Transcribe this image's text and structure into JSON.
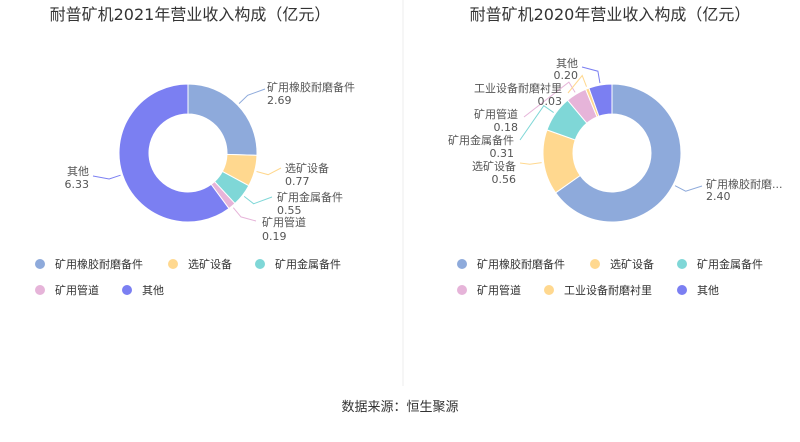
{
  "source_note": "数据来源：恒生聚源",
  "chart_data": [
    {
      "type": "pie",
      "title": "耐普矿机2021年营业收入构成（亿元）",
      "categories": [
        "矿用橡胶耐磨备件",
        "选矿设备",
        "矿用金属备件",
        "矿用管道",
        "其他"
      ],
      "values": [
        2.69,
        0.77,
        0.55,
        0.19,
        6.33
      ],
      "value_labels": [
        "2.69",
        "0.77",
        "0.55",
        "0.19",
        "6.33"
      ],
      "colors": [
        "#8eaadb",
        "#ffd88f",
        "#7fd7d7",
        "#e6b4d9",
        "#7b7ff2"
      ],
      "donut": true
    },
    {
      "type": "pie",
      "title": "耐普矿机2020年营业收入构成（亿元）",
      "categories": [
        "矿用橡胶耐磨备件",
        "选矿设备",
        "矿用金属备件",
        "矿用管道",
        "工业设备耐磨衬里",
        "其他"
      ],
      "display_labels": [
        "矿用橡胶耐磨...",
        "选矿设备",
        "矿用金属备件",
        "矿用管道",
        "工业设备耐磨衬里",
        "其他"
      ],
      "values": [
        2.4,
        0.56,
        0.31,
        0.18,
        0.03,
        0.2
      ],
      "value_labels": [
        "2.40",
        "0.56",
        "0.31",
        "0.18",
        "0.03",
        "0.20"
      ],
      "colors": [
        "#8eaadb",
        "#ffd88f",
        "#7fd7d7",
        "#e6b4d9",
        "#ffd88f",
        "#7b7ff2"
      ],
      "donut": true
    }
  ]
}
